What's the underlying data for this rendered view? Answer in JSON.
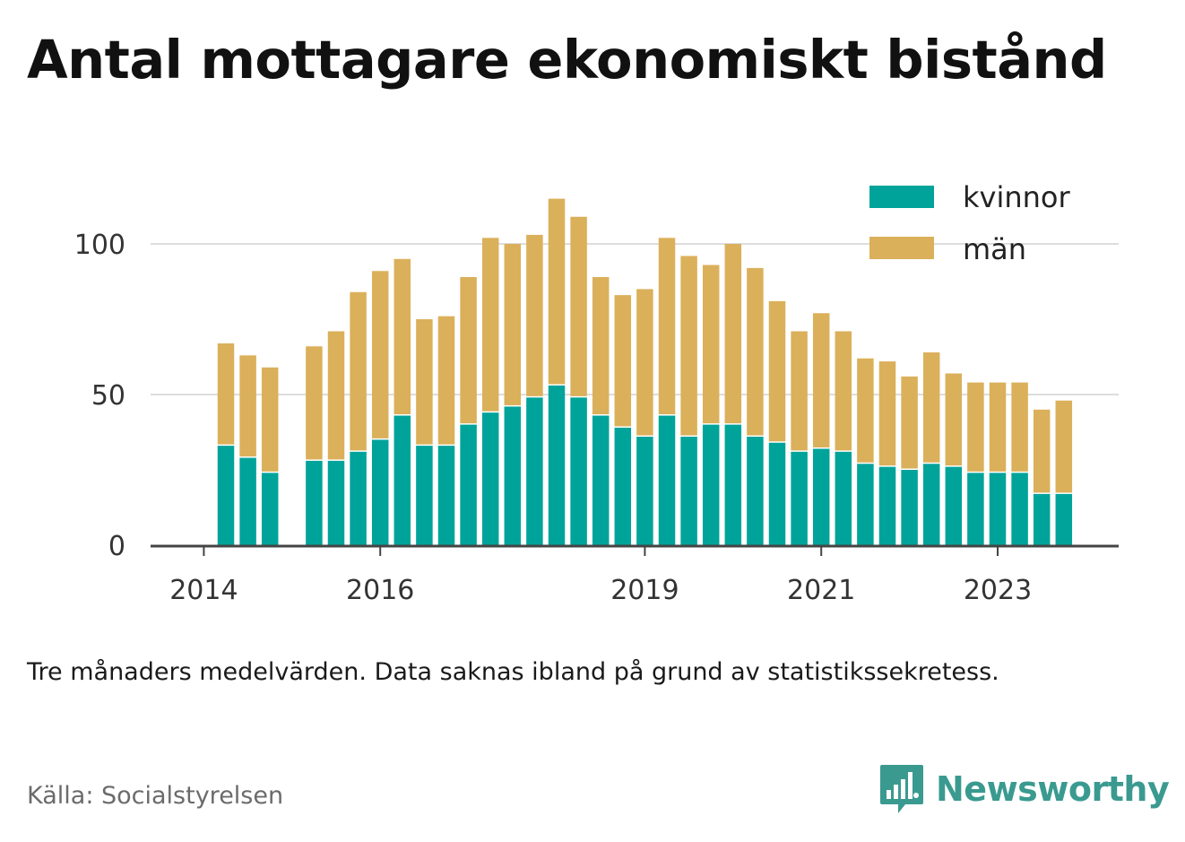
{
  "title": "Antal mottagare ekonomiskt bistånd",
  "note": "Tre månaders medelvärden. Data saknas ibland på grund av statistikssekretess.",
  "source": "Källa: Socialstyrelsen",
  "brand": {
    "name": "Newsworthy",
    "icon": "newsworthy-logo-icon",
    "color": "#3a9a90"
  },
  "colors": {
    "kvinnor": "#00a39a",
    "man": "#dbb05b",
    "grid": "#dddddd",
    "axis": "#444444"
  },
  "chart_data": {
    "type": "bar",
    "stacked": true,
    "x_tick_labels": [
      "2014",
      "2016",
      "2019",
      "2021",
      "2023"
    ],
    "y_tick_labels": [
      "0",
      "50",
      "100"
    ],
    "ylim": [
      0,
      115
    ],
    "grid": "horizontal",
    "legend_position": "top-right",
    "categories": [
      "2014-Q2",
      "2014-Q3",
      "2014-Q4",
      "2015-Q1",
      "2015-Q2",
      "2015-Q3",
      "2015-Q4",
      "2016-Q1",
      "2016-Q2",
      "2016-Q3",
      "2016-Q4",
      "2017-Q1",
      "2017-Q2",
      "2017-Q3",
      "2017-Q4",
      "2018-Q1",
      "2018-Q2",
      "2018-Q3",
      "2018-Q4",
      "2019-Q1",
      "2019-Q2",
      "2019-Q3",
      "2019-Q4",
      "2020-Q1",
      "2020-Q2",
      "2020-Q3",
      "2020-Q4",
      "2021-Q1",
      "2021-Q2",
      "2021-Q3",
      "2021-Q4",
      "2022-Q1",
      "2022-Q2",
      "2022-Q3",
      "2022-Q4",
      "2023-Q1",
      "2023-Q2",
      "2023-Q3",
      "2023-Q4"
    ],
    "series": [
      {
        "name": "kvinnor",
        "values": [
          33,
          29,
          24,
          null,
          28,
          28,
          31,
          35,
          43,
          33,
          33,
          40,
          44,
          46,
          49,
          53,
          49,
          43,
          39,
          36,
          43,
          36,
          40,
          40,
          36,
          34,
          31,
          32,
          31,
          27,
          26,
          25,
          27,
          26,
          24,
          24,
          24,
          17,
          17
        ]
      },
      {
        "name": "män",
        "values": [
          34,
          34,
          35,
          null,
          38,
          43,
          53,
          56,
          52,
          42,
          43,
          49,
          58,
          54,
          54,
          62,
          60,
          46,
          44,
          49,
          59,
          60,
          53,
          60,
          56,
          47,
          40,
          45,
          40,
          35,
          35,
          31,
          37,
          31,
          30,
          30,
          30,
          28,
          31
        ]
      }
    ]
  }
}
